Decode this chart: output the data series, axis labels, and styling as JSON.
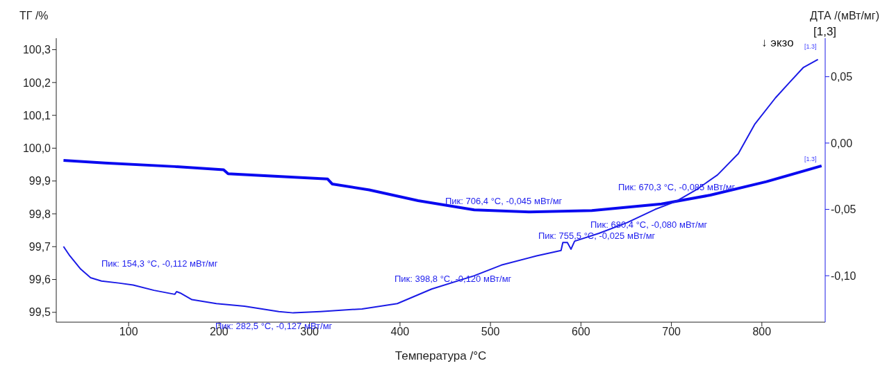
{
  "chart_data": {
    "type": "line",
    "xlabel": "Температура /°C",
    "ylabel": "ТГ /%",
    "y2label": "ДТА /(мВт/мг)",
    "xlim": [
      20,
      870
    ],
    "xticks": [
      100,
      200,
      300,
      400,
      500,
      600,
      700,
      800
    ],
    "ylim": [
      99.47,
      100.335
    ],
    "yticks": [
      {
        "value": 99.5,
        "label": "99,5"
      },
      {
        "value": 99.6,
        "label": "99,6"
      },
      {
        "value": 99.7,
        "label": "99,7"
      },
      {
        "value": 99.8,
        "label": "99,8"
      },
      {
        "value": 99.9,
        "label": "99,9"
      },
      {
        "value": 100.0,
        "label": "100,0"
      },
      {
        "value": 100.1,
        "label": "100,1"
      },
      {
        "value": 100.2,
        "label": "100,2"
      },
      {
        "value": 100.3,
        "label": "100,3"
      }
    ],
    "y2lim": [
      -0.135,
      0.079
    ],
    "y2ticks": [
      {
        "value": -0.1,
        "label": "-0,10"
      },
      {
        "value": -0.05,
        "label": "-0,05"
      },
      {
        "value": 0,
        "label": "0,00"
      },
      {
        "value": 0.05,
        "label": "0,05"
      }
    ],
    "marker": "none",
    "line_style": "solid",
    "series": [
      {
        "color": "#0a0af0",
        "x": [
          28,
          74,
          151,
          205,
          210,
          320,
          325,
          366,
          420,
          482,
          543,
          612,
          689,
          743,
          805,
          866
        ],
        "values": [
          99.963,
          99.955,
          99.944,
          99.934,
          99.922,
          99.906,
          99.891,
          99.873,
          99.84,
          99.812,
          99.806,
          99.81,
          99.83,
          99.857,
          99.898,
          99.946
        ]
      },
      {
        "color": "#1a1ae6",
        "axis": "y2",
        "x": [
          28,
          35,
          47,
          58,
          70,
          89,
          105,
          128,
          151,
          153,
          157,
          170,
          197,
          228,
          266,
          282,
          312,
          358,
          397,
          435,
          482,
          512,
          551,
          578,
          580,
          585,
          589,
          593,
          620,
          651,
          682,
          705,
          728,
          751,
          774,
          792,
          815,
          831,
          846,
          862
        ],
        "values": [
          -0.078,
          -0.085,
          -0.095,
          -0.1015,
          -0.104,
          -0.1055,
          -0.107,
          -0.111,
          -0.114,
          -0.112,
          -0.113,
          -0.118,
          -0.121,
          -0.123,
          -0.127,
          -0.128,
          -0.127,
          -0.125,
          -0.121,
          -0.11,
          -0.1,
          -0.092,
          -0.085,
          -0.081,
          -0.075,
          -0.075,
          -0.08,
          -0.074,
          -0.068,
          -0.06,
          -0.05,
          -0.044,
          -0.035,
          -0.024,
          -0.008,
          0.014,
          0.034,
          0.046,
          0.057,
          0.063
        ]
      }
    ],
    "annotations": [
      "[1,3]",
      "↓ экзо",
      "[1.3]",
      "[1.3]",
      "Пик: 154,3 °C, -0,112 мВт/мг",
      "Пик: 282,5 °C, -0,127 мВт/мг",
      "Пик: 398,8 °C, -0,120 мВт/мг",
      "Пик: 706,4 °C, -0,045 мВт/мг",
      "Пик: 680,4 °C, -0,080 мВт/мг",
      "Пик: 755,5 °C, -0,025 мВт/мг",
      "Пик: 670,3 °C, -0,085 мВт/мг"
    ]
  }
}
